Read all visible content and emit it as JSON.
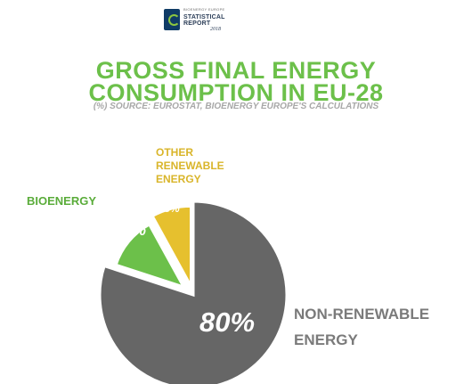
{
  "logo": {
    "small": "BIOENERGY EUROPE",
    "line1": "STATISTICAL",
    "line2": "REPORT",
    "year": "2018"
  },
  "header": {
    "title_line1": "GROSS FINAL ENERGY",
    "title_line2": "CONSUMPTION IN EU-28",
    "subtitle": "(%) SOURCE: EUROSTAT, BIOENERGY EUROPE'S CALCULATIONS"
  },
  "chart_data": {
    "type": "pie",
    "slices": [
      {
        "label": [
          "NON-RENEWABLE",
          "ENERGY"
        ],
        "value": 80,
        "value_label": "80%",
        "color": "#666666",
        "label_color": "#7a7a7a"
      },
      {
        "label": [
          "BIOENERGY"
        ],
        "value": 12,
        "value_label": "12%",
        "color": "#6cc04a",
        "label_color": "#5aac3a"
      },
      {
        "label": [
          "OTHER",
          "RENEWABLE",
          "ENERGY"
        ],
        "value": 8,
        "value_label": "8%",
        "color": "#e6c02e",
        "label_color": "#d9b52a"
      }
    ]
  }
}
